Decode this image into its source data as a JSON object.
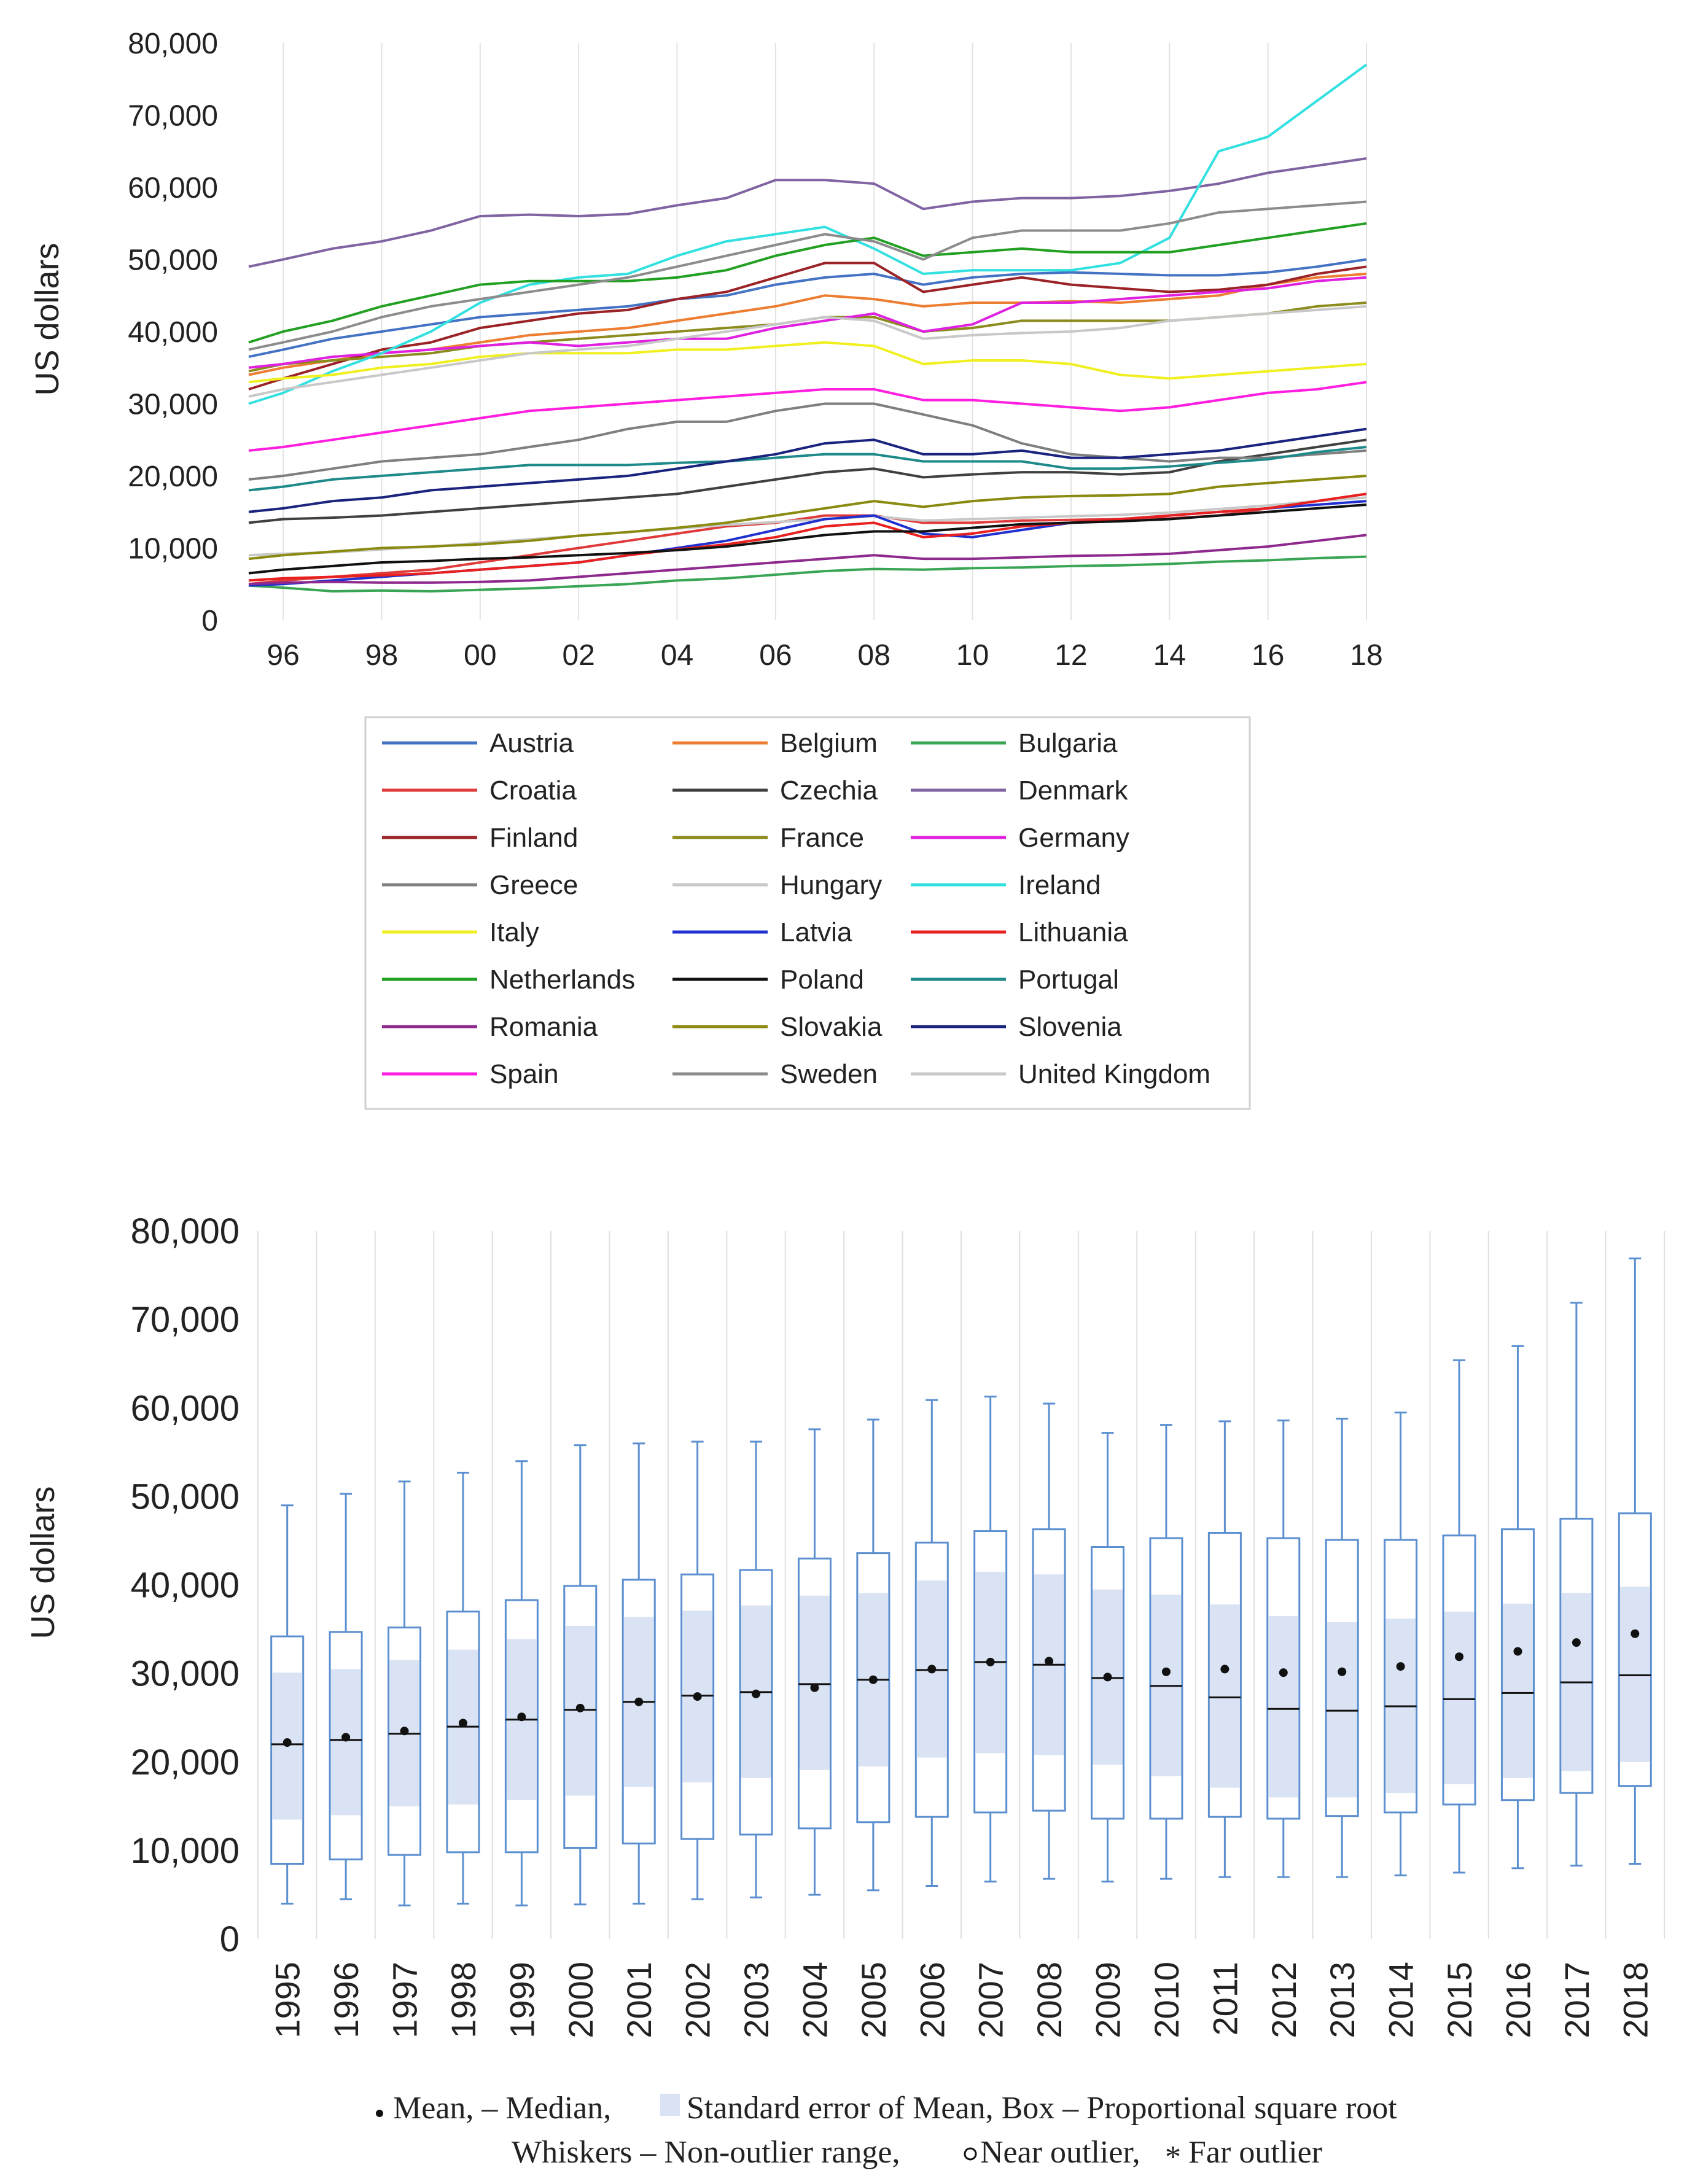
{
  "chart_data": [
    {
      "type": "line",
      "ylabel": "US dollars",
      "ylim": [
        0,
        80000
      ],
      "xlim": [
        1995.3,
        2018
      ],
      "yticks": [
        0,
        10000,
        20000,
        30000,
        40000,
        50000,
        60000,
        70000,
        80000
      ],
      "ytick_labels": [
        "0",
        "10,000",
        "20,000",
        "30,000",
        "40,000",
        "50,000",
        "60,000",
        "70,000",
        "80,000"
      ],
      "xticks": [
        1996,
        1998,
        2000,
        2002,
        2004,
        2006,
        2008,
        2010,
        2012,
        2014,
        2016,
        2018
      ],
      "xtick_labels": [
        "96",
        "98",
        "00",
        "02",
        "04",
        "06",
        "08",
        "10",
        "12",
        "14",
        "16",
        "18"
      ],
      "grid": "vertical",
      "legend": "bottom",
      "x": [
        1995.3,
        1996,
        1997,
        1998,
        1999,
        2000,
        2001,
        2002,
        2003,
        2004,
        2005,
        2006,
        2007,
        2008,
        2009,
        2010,
        2011,
        2012,
        2013,
        2014,
        2015,
        2016,
        2017,
        2018
      ],
      "series": [
        {
          "name": "Austria",
          "color": "#4472c4",
          "values": [
            36500,
            37500,
            39000,
            40000,
            41000,
            42000,
            42500,
            43000,
            43500,
            44500,
            45000,
            46500,
            47500,
            48000,
            46500,
            47500,
            48000,
            48200,
            48000,
            47800,
            47800,
            48200,
            49000,
            50000
          ]
        },
        {
          "name": "Belgium",
          "color": "#ed7d31",
          "values": [
            34000,
            35000,
            36000,
            37000,
            37500,
            38500,
            39500,
            40000,
            40500,
            41500,
            42500,
            43500,
            45000,
            44500,
            43500,
            44000,
            44000,
            44200,
            44000,
            44500,
            45000,
            46500,
            47500,
            48000
          ]
        },
        {
          "name": "Bulgaria",
          "color": "#3aa655",
          "values": [
            4800,
            4500,
            4000,
            4100,
            4000,
            4200,
            4400,
            4700,
            5000,
            5500,
            5800,
            6300,
            6800,
            7100,
            7000,
            7200,
            7300,
            7500,
            7600,
            7800,
            8100,
            8300,
            8600,
            8800
          ]
        },
        {
          "name": "Croatia",
          "color": "#e03b3b",
          "values": [
            5000,
            5500,
            6000,
            6500,
            7000,
            8000,
            9000,
            10000,
            11000,
            12000,
            13000,
            13500,
            14500,
            14500,
            13500,
            13500,
            13800,
            13900,
            14000,
            14100,
            14500,
            15500,
            16500,
            17500
          ]
        },
        {
          "name": "Czechia",
          "color": "#404040",
          "values": [
            13500,
            14000,
            14200,
            14500,
            15000,
            15500,
            16000,
            16500,
            17000,
            17500,
            18500,
            19500,
            20500,
            21000,
            19800,
            20200,
            20500,
            20500,
            20200,
            20500,
            22000,
            23000,
            24000,
            25000
          ]
        },
        {
          "name": "Denmark",
          "color": "#8064a2",
          "values": [
            49000,
            50000,
            51500,
            52500,
            54000,
            56000,
            56200,
            56000,
            56300,
            57500,
            58500,
            61000,
            61000,
            60500,
            57000,
            58000,
            58500,
            58500,
            58800,
            59500,
            60500,
            62000,
            63000,
            64000
          ]
        },
        {
          "name": "Finland",
          "color": "#9b2226",
          "values": [
            32000,
            33500,
            35500,
            37500,
            38500,
            40500,
            41500,
            42500,
            43000,
            44500,
            45500,
            47500,
            49500,
            49500,
            45500,
            46500,
            47500,
            46500,
            46000,
            45500,
            45800,
            46500,
            48000,
            49000
          ]
        },
        {
          "name": "France",
          "color": "#8b8b1e",
          "values": [
            34500,
            35500,
            36000,
            36500,
            37000,
            38000,
            38500,
            39000,
            39500,
            40000,
            40500,
            41000,
            42000,
            42000,
            40000,
            40500,
            41500,
            41500,
            41500,
            41500,
            42000,
            42500,
            43500,
            44000
          ]
        },
        {
          "name": "Germany",
          "color": "#e020e0",
          "values": [
            35000,
            35500,
            36500,
            37000,
            37500,
            38000,
            38500,
            38000,
            38500,
            39000,
            39000,
            40500,
            41500,
            42500,
            40000,
            41000,
            44000,
            44000,
            44500,
            45000,
            45500,
            46000,
            47000,
            47500
          ]
        },
        {
          "name": "Greece",
          "color": "#7f7f7f",
          "values": [
            19500,
            20000,
            21000,
            22000,
            22500,
            23000,
            24000,
            25000,
            26500,
            27500,
            27500,
            29000,
            30000,
            30000,
            28500,
            27000,
            24500,
            23000,
            22500,
            22000,
            22500,
            22500,
            23000,
            23500
          ]
        },
        {
          "name": "Hungary",
          "color": "#c8c8c8",
          "values": [
            9000,
            9200,
            9400,
            9800,
            10200,
            10700,
            11200,
            11700,
            12200,
            12700,
            13200,
            13600,
            14000,
            14400,
            13800,
            14000,
            14200,
            14400,
            14600,
            14900,
            15400,
            15900,
            16500,
            17000
          ]
        },
        {
          "name": "Ireland",
          "color": "#33e0e0",
          "values": [
            30000,
            31500,
            34500,
            37000,
            40000,
            44000,
            46500,
            47500,
            48000,
            50500,
            52500,
            53500,
            54500,
            51500,
            48000,
            48500,
            48500,
            48500,
            49500,
            53000,
            65000,
            67000,
            72000,
            77000
          ]
        },
        {
          "name": "Italy",
          "color": "#f0f020",
          "values": [
            33000,
            33500,
            34000,
            35000,
            35500,
            36500,
            37000,
            37000,
            37000,
            37500,
            37500,
            38000,
            38500,
            38000,
            35500,
            36000,
            36000,
            35500,
            34000,
            33500,
            34000,
            34500,
            35000,
            35500
          ]
        },
        {
          "name": "Latvia",
          "color": "#2030d0",
          "values": [
            4800,
            5000,
            5500,
            6000,
            6500,
            7000,
            7500,
            8000,
            9000,
            10000,
            11000,
            12500,
            14000,
            14500,
            12000,
            11500,
            12500,
            13500,
            14000,
            14500,
            15000,
            15500,
            16000,
            16500
          ]
        },
        {
          "name": "Lithuania",
          "color": "#e82020",
          "values": [
            5500,
            5800,
            6000,
            6200,
            6500,
            7000,
            7500,
            8000,
            9000,
            9800,
            10500,
            11500,
            13000,
            13500,
            11500,
            12000,
            13000,
            13500,
            14000,
            14500,
            15000,
            15500,
            16500,
            17500
          ]
        },
        {
          "name": "Netherlands",
          "color": "#22a022",
          "values": [
            38500,
            40000,
            41500,
            43500,
            45000,
            46500,
            47000,
            47000,
            47000,
            47500,
            48500,
            50500,
            52000,
            53000,
            50500,
            51000,
            51500,
            51000,
            51000,
            51000,
            52000,
            53000,
            54000,
            55000
          ]
        },
        {
          "name": "Poland",
          "color": "#111111",
          "values": [
            6500,
            7000,
            7500,
            8000,
            8200,
            8500,
            8700,
            9000,
            9300,
            9700,
            10200,
            11000,
            11800,
            12300,
            12300,
            12800,
            13300,
            13500,
            13700,
            14000,
            14500,
            15000,
            15500,
            16000
          ]
        },
        {
          "name": "Portugal",
          "color": "#1f8a8a",
          "values": [
            18000,
            18500,
            19500,
            20000,
            20500,
            21000,
            21500,
            21500,
            21500,
            21800,
            22000,
            22500,
            23000,
            23000,
            22000,
            22000,
            22000,
            21000,
            21000,
            21300,
            21800,
            22300,
            23300,
            24000
          ]
        },
        {
          "name": "Romania",
          "color": "#8e2a8e",
          "values": [
            5000,
            5200,
            5300,
            5200,
            5200,
            5300,
            5500,
            6000,
            6500,
            7000,
            7500,
            8000,
            8500,
            9000,
            8500,
            8500,
            8700,
            8900,
            9000,
            9200,
            9700,
            10200,
            11000,
            11800
          ]
        },
        {
          "name": "Slovakia",
          "color": "#8a8a10",
          "values": [
            8500,
            9000,
            9500,
            10000,
            10200,
            10500,
            11000,
            11700,
            12200,
            12800,
            13500,
            14500,
            15500,
            16500,
            15700,
            16500,
            17000,
            17200,
            17300,
            17500,
            18500,
            19000,
            19500,
            20000
          ]
        },
        {
          "name": "Slovenia",
          "color": "#1a237e",
          "values": [
            15000,
            15500,
            16500,
            17000,
            18000,
            18500,
            19000,
            19500,
            20000,
            21000,
            22000,
            23000,
            24500,
            25000,
            23000,
            23000,
            23500,
            22500,
            22500,
            23000,
            23500,
            24500,
            25500,
            26500
          ]
        },
        {
          "name": "Spain",
          "color": "#ff1ee0",
          "values": [
            23500,
            24000,
            25000,
            26000,
            27000,
            28000,
            29000,
            29500,
            30000,
            30500,
            31000,
            31500,
            32000,
            32000,
            30500,
            30500,
            30000,
            29500,
            29000,
            29500,
            30500,
            31500,
            32000,
            33000
          ]
        },
        {
          "name": "Sweden",
          "color": "#8c8c8c",
          "values": [
            37500,
            38500,
            40000,
            42000,
            43500,
            44500,
            45500,
            46500,
            47500,
            49000,
            50500,
            52000,
            53500,
            52500,
            50000,
            53000,
            54000,
            54000,
            54000,
            55000,
            56500,
            57000,
            57500,
            58000
          ]
        },
        {
          "name": "United Kingdom",
          "color": "#c8c8c8",
          "values": [
            31000,
            32000,
            33000,
            34000,
            35000,
            36000,
            37000,
            37500,
            38000,
            39000,
            40000,
            41000,
            42000,
            41500,
            39000,
            39500,
            39800,
            40000,
            40500,
            41500,
            42000,
            42500,
            43000,
            43500
          ]
        }
      ]
    },
    {
      "type": "box",
      "ylabel": "US dollars",
      "ylim": [
        0,
        80000
      ],
      "yticks": [
        0,
        10000,
        20000,
        30000,
        40000,
        50000,
        60000,
        70000,
        80000
      ],
      "ytick_labels": [
        "0",
        "10,000",
        "20,000",
        "30,000",
        "40,000",
        "50,000",
        "60,000",
        "70,000",
        "80,000"
      ],
      "grid": "vertical",
      "categories": [
        "1995",
        "1996",
        "1997",
        "1998",
        "1999",
        "2000",
        "2001",
        "2002",
        "2003",
        "2004",
        "2005",
        "2006",
        "2007",
        "2008",
        "2009",
        "2010",
        "2011",
        "2012",
        "2013",
        "2014",
        "2015",
        "2016",
        "2017",
        "2018"
      ],
      "whisker_low": [
        4000,
        4500,
        3800,
        4000,
        3800,
        3900,
        4000,
        4500,
        4700,
        5000,
        5500,
        6000,
        6500,
        6800,
        6500,
        6800,
        7000,
        7000,
        7000,
        7200,
        7500,
        8000,
        8300,
        8500
      ],
      "box_low": [
        8500,
        9000,
        9500,
        9800,
        9800,
        10300,
        10800,
        11300,
        11800,
        12500,
        13200,
        13800,
        14300,
        14500,
        13600,
        13600,
        13800,
        13600,
        13900,
        14300,
        15200,
        15700,
        16500,
        17300
      ],
      "se_low": [
        13500,
        14000,
        15000,
        15200,
        15700,
        16200,
        17200,
        17700,
        18200,
        19100,
        19500,
        20500,
        21000,
        20800,
        19700,
        18400,
        17100,
        16000,
        16000,
        16500,
        17500,
        18200,
        19000,
        20000
      ],
      "median": [
        22000,
        22500,
        23200,
        24000,
        24800,
        25900,
        26800,
        27500,
        27900,
        28800,
        29300,
        30400,
        31300,
        31000,
        29500,
        28600,
        27300,
        26000,
        25800,
        26300,
        27100,
        27800,
        29000,
        29800
      ],
      "mean": [
        22200,
        22800,
        23500,
        24400,
        25100,
        26100,
        26800,
        27400,
        27700,
        28400,
        29300,
        30500,
        31300,
        31400,
        29600,
        30200,
        30500,
        30100,
        30200,
        30800,
        31900,
        32500,
        33500,
        34500
      ],
      "se_high": [
        30100,
        30500,
        31500,
        32700,
        33900,
        35400,
        36400,
        37100,
        37700,
        38800,
        39100,
        40500,
        41500,
        41200,
        39500,
        38900,
        37800,
        36500,
        35800,
        36200,
        37000,
        37900,
        39100,
        39800
      ],
      "box_high": [
        34200,
        34700,
        35200,
        37000,
        38300,
        39900,
        40600,
        41200,
        41700,
        43000,
        43600,
        44800,
        46100,
        46300,
        44300,
        45300,
        45900,
        45300,
        45100,
        45100,
        45600,
        46300,
        47500,
        48100
      ],
      "whisker_high": [
        49000,
        50300,
        51700,
        52700,
        54000,
        55800,
        56000,
        56200,
        56200,
        57600,
        58700,
        60900,
        61300,
        60500,
        57200,
        58100,
        58500,
        58600,
        58800,
        59500,
        65400,
        67000,
        71900,
        76900
      ],
      "caption_line1": "Mean, – Median,",
      "caption_line1b": "Standard error of Mean, Box – Proportional square root",
      "caption_line2": "Whiskers – Non-outlier range,",
      "caption_line2b": "Near outlier,",
      "caption_line2c": "Far outlier"
    }
  ]
}
